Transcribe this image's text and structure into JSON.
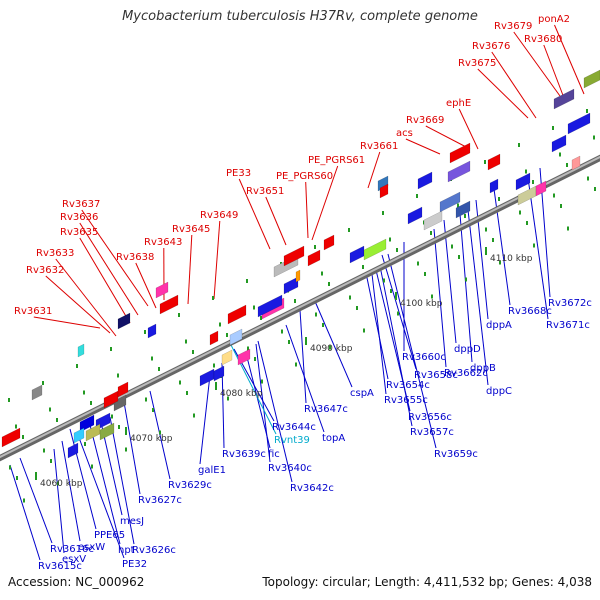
{
  "title": "Mycobacterium tuberculosis H37Rv, complete genome",
  "footer": {
    "accession": "Accession: NC_000962",
    "topology": "Topology: circular; Length: 4,411,532 bp; Genes: 4,038"
  },
  "colors": {
    "forward_label": "#dd0000",
    "reverse_label": "#0000cc",
    "rna_label": "#00aacc",
    "backbone": "#888888",
    "tick": "#229922"
  },
  "ticks": [
    {
      "label": "4060 kbp",
      "pos_kbp": 4060
    },
    {
      "label": "4070 kbp",
      "pos_kbp": 4070
    },
    {
      "label": "4080 kbp",
      "pos_kbp": 4080
    },
    {
      "label": "4090 kbp",
      "pos_kbp": 4090
    },
    {
      "label": "4100 kbp",
      "pos_kbp": 4100
    },
    {
      "label": "4110 kbp",
      "pos_kbp": 4110
    }
  ],
  "forward_genes": [
    "Rv3631",
    "Rv3632",
    "Rv3633",
    "Rv3635",
    "Rv3636",
    "Rv3637",
    "Rv3638",
    "Rv3643",
    "Rv3645",
    "Rv3649",
    "PE33",
    "Rv3651",
    "PE_PGRS60",
    "PE_PGRS61",
    "Rv3661",
    "acs",
    "Rv3669",
    "ephE",
    "Rv3675",
    "Rv3676",
    "Rv3679",
    "Rv3680",
    "ponA2"
  ],
  "reverse_genes": [
    "Rv3615c",
    "Rv3616c",
    "esxV",
    "esxW",
    "PPE65",
    "PE32",
    "hpt",
    "mesJ",
    "Rv3626c",
    "Rv3627c",
    "Rv3629c",
    "galE1",
    "Rv3639c",
    "fic",
    "Rv3640c",
    "Rv3642c",
    "Rv3644c",
    "topA",
    "Rv3647c",
    "cspA",
    "Rv3654c",
    "Rv3655c",
    "Rv3656c",
    "Rv3657c",
    "Rv3658c",
    "Rv3659c",
    "Rv3660c",
    "Rv3662c",
    "dppD",
    "dppB",
    "dppC",
    "dppA",
    "Rv3668c",
    "Rv3671c",
    "Rv3672c"
  ],
  "rna_genes": [
    "Rvnt39"
  ]
}
